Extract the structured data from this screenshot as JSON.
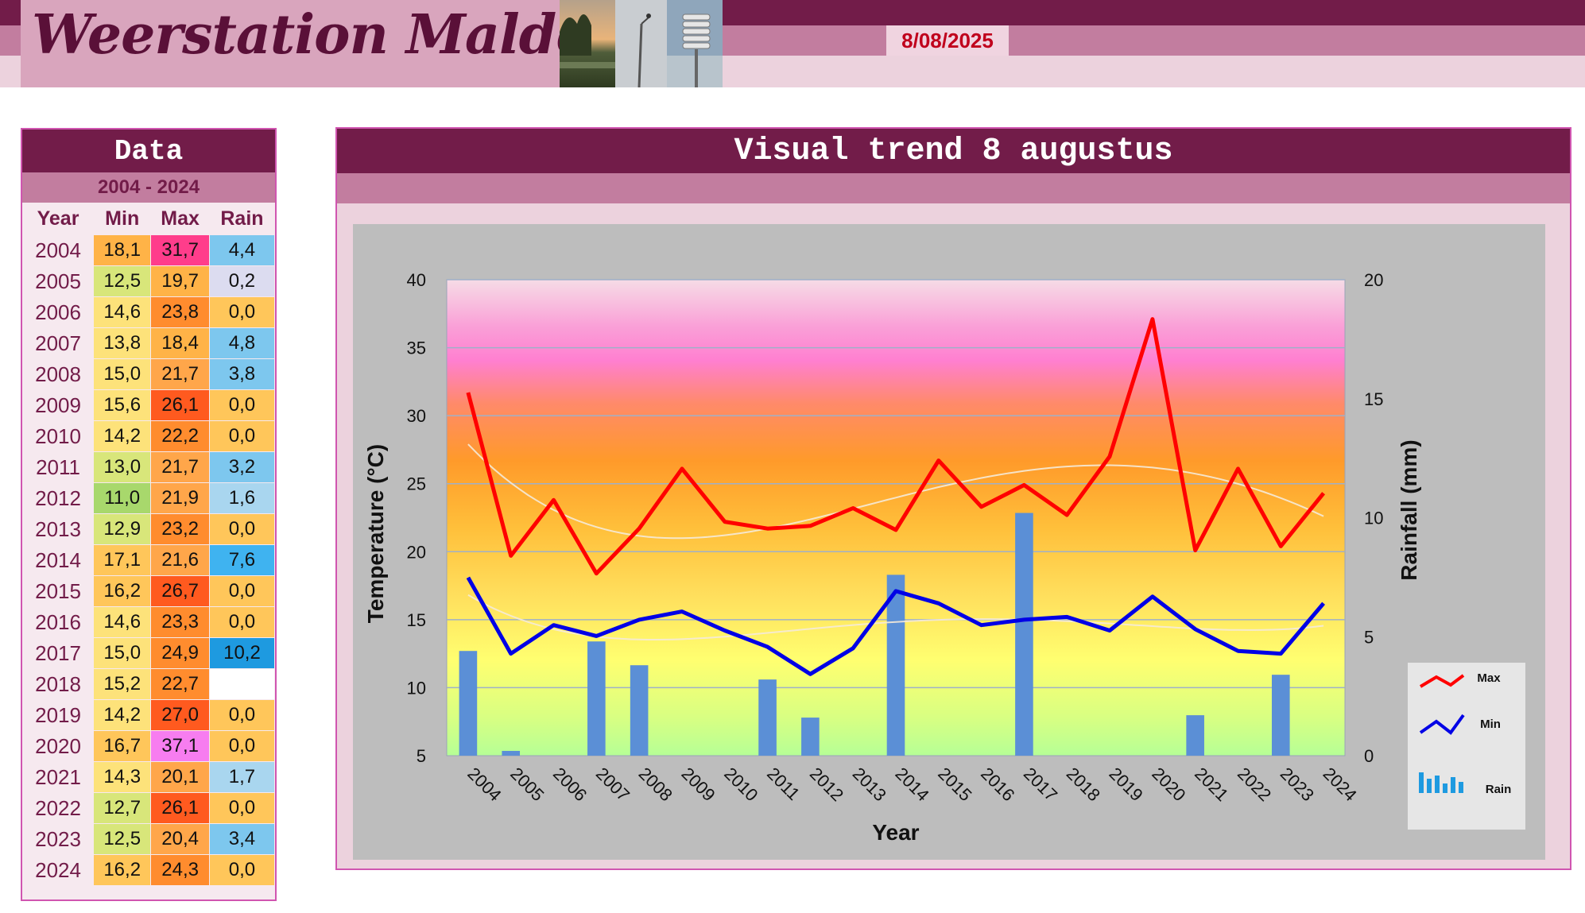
{
  "header": {
    "title": "Weerstation Malderen",
    "date": "8/08/2025"
  },
  "data_panel": {
    "title": "Data",
    "range": "2004 - 2024",
    "columns": [
      "Year",
      "Min",
      "Max",
      "Rain"
    ],
    "rows": [
      {
        "year": "2004",
        "min": "18,1",
        "max": "31,7",
        "rain": "4,4"
      },
      {
        "year": "2005",
        "min": "12,5",
        "max": "19,7",
        "rain": "0,2"
      },
      {
        "year": "2006",
        "min": "14,6",
        "max": "23,8",
        "rain": "0,0"
      },
      {
        "year": "2007",
        "min": "13,8",
        "max": "18,4",
        "rain": "4,8"
      },
      {
        "year": "2008",
        "min": "15,0",
        "max": "21,7",
        "rain": "3,8"
      },
      {
        "year": "2009",
        "min": "15,6",
        "max": "26,1",
        "rain": "0,0"
      },
      {
        "year": "2010",
        "min": "14,2",
        "max": "22,2",
        "rain": "0,0"
      },
      {
        "year": "2011",
        "min": "13,0",
        "max": "21,7",
        "rain": "3,2"
      },
      {
        "year": "2012",
        "min": "11,0",
        "max": "21,9",
        "rain": "1,6"
      },
      {
        "year": "2013",
        "min": "12,9",
        "max": "23,2",
        "rain": "0,0"
      },
      {
        "year": "2014",
        "min": "17,1",
        "max": "21,6",
        "rain": "7,6"
      },
      {
        "year": "2015",
        "min": "16,2",
        "max": "26,7",
        "rain": "0,0"
      },
      {
        "year": "2016",
        "min": "14,6",
        "max": "23,3",
        "rain": "0,0"
      },
      {
        "year": "2017",
        "min": "15,0",
        "max": "24,9",
        "rain": "10,2"
      },
      {
        "year": "2018",
        "min": "15,2",
        "max": "22,7",
        "rain": ""
      },
      {
        "year": "2019",
        "min": "14,2",
        "max": "27,0",
        "rain": "0,0"
      },
      {
        "year": "2020",
        "min": "16,7",
        "max": "37,1",
        "rain": "0,0"
      },
      {
        "year": "2021",
        "min": "14,3",
        "max": "20,1",
        "rain": "1,7"
      },
      {
        "year": "2022",
        "min": "12,7",
        "max": "26,1",
        "rain": "0,0"
      },
      {
        "year": "2023",
        "min": "12,5",
        "max": "20,4",
        "rain": "3,4"
      },
      {
        "year": "2024",
        "min": "16,2",
        "max": "24,3",
        "rain": "0,0"
      }
    ]
  },
  "chart_panel": {
    "title": "Visual  trend 8 augustus"
  },
  "chart_data": {
    "type": "line",
    "title": "",
    "xlabel": "Year",
    "ylabel": "Temperature (°C)",
    "y2label": "Rainfall (mm)",
    "x": [
      "2004",
      "2005",
      "2006",
      "2007",
      "2008",
      "2009",
      "2010",
      "2011",
      "2012",
      "2013",
      "2014",
      "2015",
      "2016",
      "2017",
      "2018",
      "2019",
      "2020",
      "2021",
      "2022",
      "2023",
      "2024"
    ],
    "ylim": [
      5,
      40
    ],
    "yticks": [
      5,
      10,
      15,
      20,
      25,
      30,
      35,
      40
    ],
    "y2lim": [
      0,
      20
    ],
    "y2ticks": [
      0,
      5,
      10,
      15,
      20
    ],
    "series": [
      {
        "name": "Max",
        "type": "line",
        "axis": "left",
        "color": "#ff0000",
        "values": [
          31.7,
          19.7,
          23.8,
          18.4,
          21.7,
          26.1,
          22.2,
          21.7,
          21.9,
          23.2,
          21.6,
          26.7,
          23.3,
          24.9,
          22.7,
          27.0,
          37.1,
          20.1,
          26.1,
          20.4,
          24.3
        ]
      },
      {
        "name": "Min",
        "type": "line",
        "axis": "left",
        "color": "#0000e6",
        "values": [
          18.1,
          12.5,
          14.6,
          13.8,
          15.0,
          15.6,
          14.2,
          13.0,
          11.0,
          12.9,
          17.1,
          16.2,
          14.6,
          15.0,
          15.2,
          14.2,
          16.7,
          14.3,
          12.7,
          12.5,
          16.2
        ]
      },
      {
        "name": "Rain",
        "type": "bar",
        "axis": "right",
        "color": "#5b8fd6",
        "values": [
          4.4,
          0.2,
          0.0,
          4.8,
          3.8,
          0.0,
          0.0,
          3.2,
          1.6,
          0.0,
          7.6,
          0.0,
          0.0,
          10.2,
          0.0,
          0.0,
          0.0,
          1.7,
          0.0,
          3.4,
          0.0
        ]
      }
    ],
    "legend": {
      "position": "right",
      "entries": [
        "Max",
        "Min",
        "Rain"
      ]
    },
    "colors": {
      "panel_dark": "#721c49",
      "panel_mid": "#c27d9f",
      "panel_light": "#ecd2dd",
      "date_text": "#c0001c"
    }
  }
}
